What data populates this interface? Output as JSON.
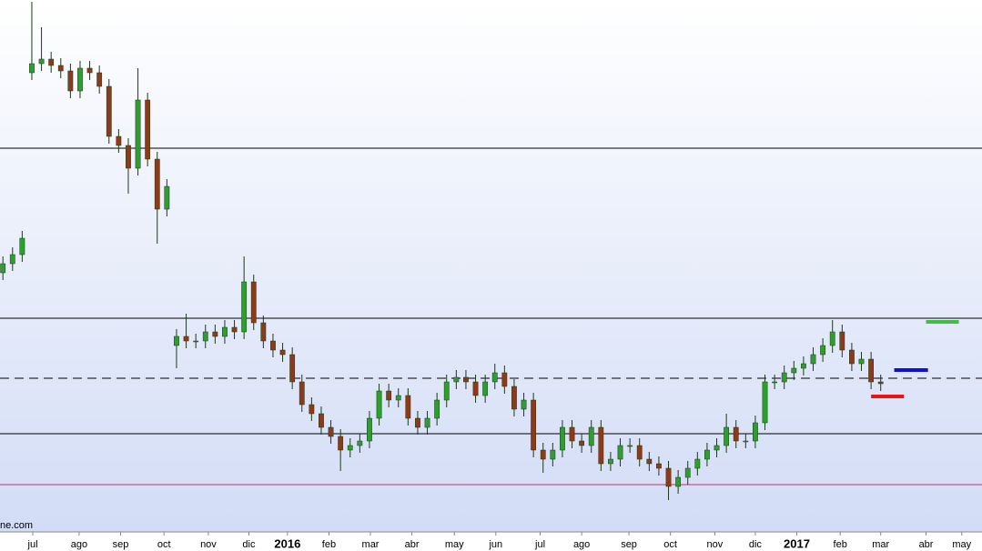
{
  "chart_data": {
    "type": "candlestick",
    "watermark": "ne.com",
    "xlim": [
      -0.3,
      101.5
    ],
    "ylim": [
      15,
      600
    ],
    "xticks": [
      {
        "value": 3.1,
        "label": "jul"
      },
      {
        "value": 7.9,
        "label": "ago"
      },
      {
        "value": 12.2,
        "label": "sep"
      },
      {
        "value": 16.7,
        "label": "oct"
      },
      {
        "value": 21.3,
        "label": "nov"
      },
      {
        "value": 25.5,
        "label": "dic"
      },
      {
        "value": 29.5,
        "label": "2016"
      },
      {
        "value": 33.8,
        "label": "feb"
      },
      {
        "value": 38.1,
        "label": "mar"
      },
      {
        "value": 42.4,
        "label": "abr"
      },
      {
        "value": 46.8,
        "label": "may"
      },
      {
        "value": 51.1,
        "label": "jun"
      },
      {
        "value": 55.7,
        "label": "jul"
      },
      {
        "value": 60.0,
        "label": "ago"
      },
      {
        "value": 64.9,
        "label": "sep"
      },
      {
        "value": 69.2,
        "label": "oct"
      },
      {
        "value": 73.8,
        "label": "nov"
      },
      {
        "value": 78.0,
        "label": "dic"
      },
      {
        "value": 82.3,
        "label": "2017"
      },
      {
        "value": 86.8,
        "label": "feb"
      },
      {
        "value": 91.0,
        "label": "mar"
      },
      {
        "value": 95.7,
        "label": "abr"
      },
      {
        "value": 99.4,
        "label": "may"
      }
    ],
    "bold_tick_labels": [
      "2016",
      "2017"
    ],
    "up_color": "#2e9e2e",
    "down_color": "#8b3a1a",
    "levels": [
      {
        "value": 437,
        "color": "#000000",
        "dashed": false
      },
      {
        "value": 250,
        "color": "#000000",
        "dashed": false
      },
      {
        "value": 184,
        "color": "#000000",
        "dashed": true
      },
      {
        "value": 123,
        "color": "#000000",
        "dashed": false
      },
      {
        "value": 67,
        "color": "#c0306a",
        "dashed": false
      }
    ],
    "markers": [
      {
        "value": 246,
        "x": [
          95.7,
          99.1
        ],
        "color": "#44bb44"
      },
      {
        "value": 193,
        "x": [
          92.4,
          95.9
        ],
        "color": "#1010dd"
      },
      {
        "value": 164,
        "x": [
          90.0,
          93.4
        ],
        "color": "#ee1111"
      }
    ],
    "x": [
      0,
      1,
      2,
      3,
      4,
      5,
      6,
      7,
      8,
      9,
      10,
      11,
      12,
      13,
      14,
      15,
      16,
      17,
      18,
      19,
      20,
      21,
      22,
      23,
      24,
      25,
      26,
      27,
      28,
      29,
      30,
      31,
      32,
      33,
      34,
      35,
      36,
      37,
      38,
      39,
      40,
      41,
      42,
      43,
      44,
      45,
      46,
      47,
      48,
      49,
      50,
      51,
      52,
      53,
      54,
      55,
      56,
      57,
      58,
      59,
      60,
      61,
      62,
      63,
      64,
      65,
      66,
      67,
      68,
      69,
      70,
      71,
      72,
      73,
      74,
      75,
      76,
      77,
      78,
      79,
      80,
      81,
      82,
      83,
      84,
      85,
      86,
      87,
      88,
      89,
      90,
      91
    ],
    "open": [
      300,
      310,
      320,
      520,
      530,
      535,
      528,
      522,
      500,
      525,
      520,
      505,
      450,
      440,
      415,
      490,
      425,
      370,
      220,
      230,
      225,
      225,
      235,
      230,
      240,
      235,
      290,
      245,
      225,
      215,
      210,
      180,
      155,
      145,
      130,
      120,
      105,
      110,
      115,
      140,
      170,
      160,
      165,
      140,
      130,
      140,
      160,
      180,
      185,
      180,
      165,
      180,
      190,
      175,
      150,
      160,
      105,
      95,
      105,
      130,
      115,
      110,
      130,
      90,
      95,
      110,
      110,
      95,
      90,
      85,
      65,
      75,
      85,
      95,
      105,
      110,
      130,
      115,
      115,
      135,
      180,
      180,
      190,
      195,
      200,
      210,
      220,
      235,
      215,
      200,
      205,
      180
    ],
    "high": [
      318,
      328,
      346,
      598,
      570,
      543,
      536,
      530,
      533,
      533,
      528,
      513,
      458,
      448,
      525,
      498,
      433,
      403,
      238,
      255,
      233,
      243,
      243,
      248,
      248,
      318,
      298,
      253,
      233,
      223,
      218,
      188,
      163,
      153,
      138,
      128,
      118,
      123,
      148,
      178,
      178,
      173,
      173,
      148,
      148,
      168,
      188,
      193,
      193,
      188,
      188,
      200,
      198,
      183,
      168,
      168,
      113,
      113,
      138,
      138,
      123,
      138,
      138,
      103,
      118,
      118,
      118,
      103,
      98,
      93,
      83,
      93,
      103,
      113,
      118,
      145,
      138,
      123,
      143,
      188,
      188,
      198,
      203,
      208,
      218,
      228,
      248,
      243,
      223,
      213,
      213,
      188
    ],
    "low": [
      292,
      302,
      312,
      512,
      522,
      520,
      514,
      492,
      492,
      512,
      497,
      442,
      432,
      387,
      407,
      417,
      332,
      362,
      195,
      217,
      217,
      217,
      222,
      222,
      227,
      227,
      237,
      217,
      207,
      202,
      172,
      147,
      137,
      122,
      112,
      82,
      97,
      102,
      107,
      132,
      152,
      152,
      132,
      122,
      122,
      132,
      152,
      172,
      172,
      157,
      157,
      172,
      167,
      142,
      142,
      97,
      80,
      87,
      97,
      107,
      102,
      102,
      82,
      82,
      87,
      102,
      87,
      82,
      77,
      50,
      57,
      67,
      77,
      87,
      97,
      102,
      107,
      107,
      107,
      127,
      172,
      172,
      182,
      187,
      192,
      202,
      212,
      207,
      192,
      192,
      172,
      170
    ],
    "close": [
      310,
      320,
      338,
      530,
      535,
      528,
      522,
      500,
      525,
      520,
      505,
      450,
      440,
      415,
      490,
      425,
      370,
      395,
      230,
      225,
      225,
      235,
      230,
      240,
      235,
      290,
      245,
      225,
      215,
      210,
      180,
      155,
      145,
      130,
      120,
      105,
      110,
      115,
      140,
      170,
      160,
      165,
      140,
      130,
      140,
      160,
      180,
      185,
      180,
      165,
      180,
      190,
      175,
      150,
      160,
      105,
      95,
      105,
      130,
      115,
      110,
      130,
      90,
      95,
      110,
      110,
      95,
      90,
      85,
      65,
      75,
      85,
      95,
      105,
      110,
      130,
      115,
      115,
      135,
      180,
      180,
      190,
      195,
      200,
      210,
      220,
      235,
      215,
      200,
      205,
      180,
      178
    ]
  }
}
